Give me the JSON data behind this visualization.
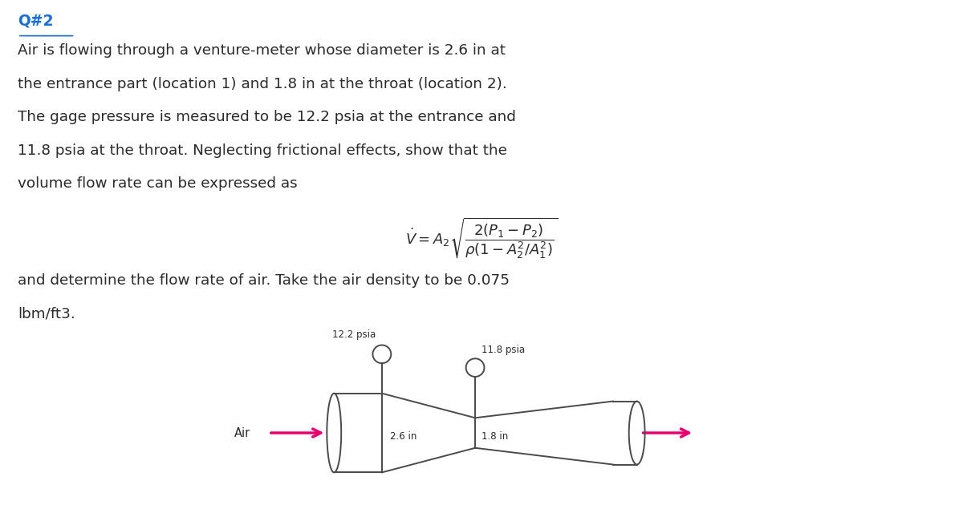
{
  "title": "Q#2",
  "para1_lines": [
    "Air is flowing through a venture-meter whose diameter is 2.6 in at",
    "the entrance part (location 1) and 1.8 in at the throat (location 2).",
    "The gage pressure is measured to be 12.2 psia at the entrance and",
    "11.8 psia at the throat. Neglecting frictional effects, show that the",
    "volume flow rate can be expressed as"
  ],
  "formula_text": "$\\dot{V} = A_2\\sqrt{\\dfrac{2(P_1 - P_2)}{\\rho(1 - A_2^2/A_1^2)}}$",
  "para2_lines": [
    "and determine the flow rate of air. Take the air density to be 0.075",
    "lbm/ft3."
  ],
  "pressure1": "12.2 psia",
  "pressure2": "11.8 psia",
  "diameter1": "2.6 in",
  "diameter2": "1.8 in",
  "air_label": "Air",
  "bg_color": "#ffffff",
  "text_color": "#2a2a2a",
  "arrow_color": "#e8006e",
  "diagram_color": "#4a4a4a",
  "title_color": "#1a6ed8"
}
